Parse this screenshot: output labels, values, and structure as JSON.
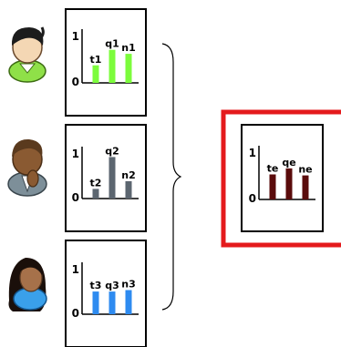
{
  "colors": {
    "panel_border": "#000000",
    "highlight_border": "#e41a1c",
    "person1_bars": "#7cfc3c",
    "person2_bars": "#5c6670",
    "person3_bars": "#2e8bf0",
    "result_bars": "#5a0b0b",
    "person1_shirt": "#8fe048",
    "person2_shirt": "#7d8f99",
    "person3_shirt": "#3aa0ea"
  },
  "people": [
    {
      "name": "person-1",
      "icon": "person-green-shirt-icon"
    },
    {
      "name": "person-2",
      "icon": "person-thinking-icon"
    },
    {
      "name": "person-3",
      "icon": "person-long-hair-icon"
    }
  ],
  "chart_data": [
    {
      "type": "bar",
      "categories": [
        "t1",
        "q1",
        "n1"
      ],
      "values": [
        0.35,
        0.66,
        0.58
      ],
      "ylim": [
        0,
        1
      ],
      "yticks": [
        "0",
        "1"
      ],
      "color": "#7cfc3c"
    },
    {
      "type": "bar",
      "categories": [
        "t2",
        "q2",
        "n2"
      ],
      "values": [
        0.2,
        0.86,
        0.36
      ],
      "ylim": [
        0,
        1
      ],
      "yticks": [
        "0",
        "1"
      ],
      "color": "#5c6670"
    },
    {
      "type": "bar",
      "categories": [
        "t3",
        "q3",
        "n3"
      ],
      "values": [
        0.47,
        0.47,
        0.5
      ],
      "ylim": [
        0,
        1
      ],
      "yticks": [
        "0",
        "1"
      ],
      "color": "#2e8bf0"
    },
    {
      "type": "bar",
      "categories": [
        "te",
        "qe",
        "ne"
      ],
      "values": [
        0.5,
        0.62,
        0.48
      ],
      "ylim": [
        0,
        1
      ],
      "yticks": [
        "0",
        "1"
      ],
      "color": "#5a0b0b"
    }
  ]
}
